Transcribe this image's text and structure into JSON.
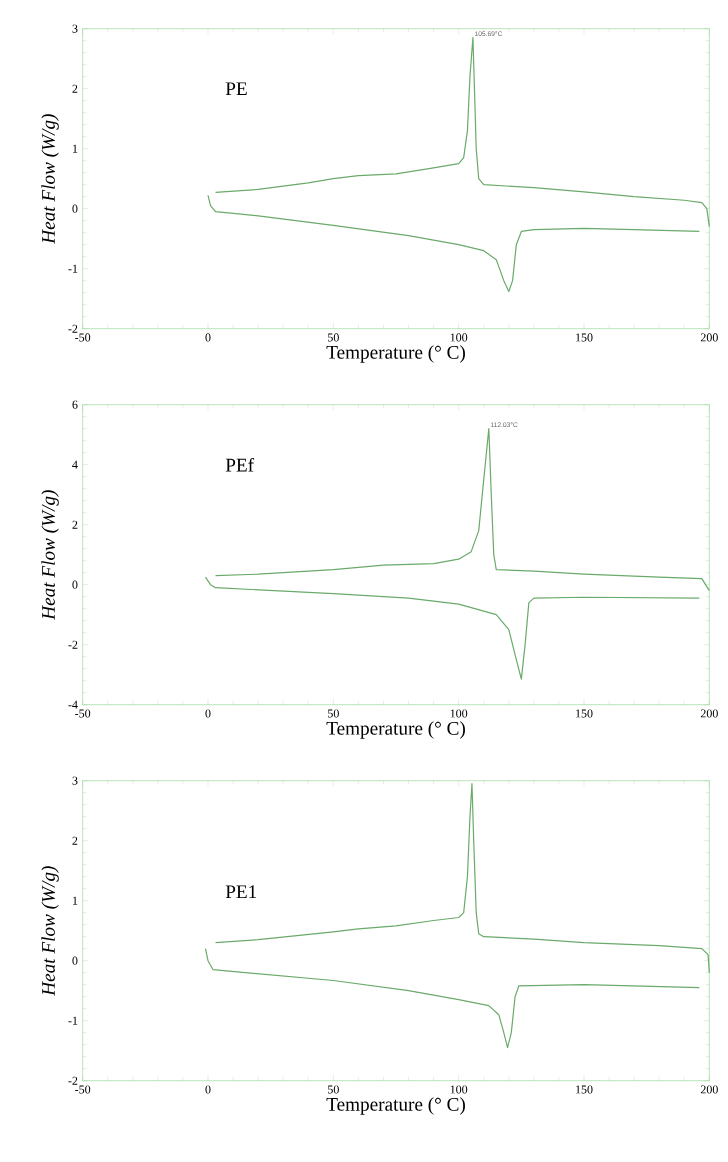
{
  "chart_data": [
    {
      "type": "line",
      "xlabel": "Temperature (° C)",
      "ylabel": "Heat Flow (W/g)",
      "xlim": [
        -50,
        200
      ],
      "ylim": [
        -2,
        3
      ],
      "xticks": [
        -50,
        0,
        50,
        100,
        150,
        200
      ],
      "yticks": [
        -2,
        -1,
        0,
        1,
        2,
        3
      ],
      "annotations": [
        "PE",
        {
          "text": "105.69°C",
          "x": 105.69,
          "y": 2.85
        }
      ],
      "series": [
        {
          "color": "#6aaa6a",
          "x": [
            3,
            20,
            40,
            50,
            60,
            75,
            90,
            100,
            102,
            103.5,
            104.5,
            105.69,
            106.3,
            107,
            108,
            110,
            130,
            150,
            170,
            190,
            197,
            199,
            200
          ],
          "values": [
            0.27,
            0.32,
            0.43,
            0.5,
            0.55,
            0.58,
            0.68,
            0.75,
            0.85,
            1.3,
            2.2,
            2.85,
            2.0,
            1.0,
            0.5,
            0.4,
            0.35,
            0.28,
            0.2,
            0.14,
            0.1,
            0,
            -0.3
          ]
        },
        {
          "color": "#6aaa6a",
          "x": [
            0,
            1,
            3,
            20,
            50,
            80,
            100,
            110,
            115,
            118,
            120,
            121.5,
            123,
            125,
            130,
            150,
            170,
            196
          ],
          "values": [
            0.22,
            0.05,
            -0.05,
            -0.12,
            -0.28,
            -0.45,
            -0.6,
            -0.7,
            -0.85,
            -1.2,
            -1.38,
            -1.2,
            -0.6,
            -0.38,
            -0.35,
            -0.33,
            -0.35,
            -0.38
          ]
        }
      ]
    },
    {
      "type": "line",
      "xlabel": "Temperature (° C)",
      "ylabel": "Heat Flow (W/g)",
      "xlim": [
        -50,
        200
      ],
      "ylim": [
        -4,
        6
      ],
      "xticks": [
        -50,
        0,
        50,
        100,
        150,
        200
      ],
      "yticks": [
        -4,
        -2,
        0,
        2,
        4,
        6
      ],
      "annotations": [
        "PEf",
        {
          "text": "112.03°C",
          "x": 112.03,
          "y": 5.2
        }
      ],
      "series": [
        {
          "color": "#6aaa6a",
          "x": [
            3,
            20,
            50,
            70,
            90,
            100,
            105,
            108,
            110,
            112.03,
            113,
            114,
            115,
            130,
            150,
            180,
            197,
            200
          ],
          "values": [
            0.3,
            0.35,
            0.5,
            0.65,
            0.7,
            0.85,
            1.1,
            1.8,
            3.5,
            5.2,
            3.0,
            1.0,
            0.5,
            0.45,
            0.35,
            0.25,
            0.2,
            -0.2
          ]
        },
        {
          "color": "#6aaa6a",
          "x": [
            -1,
            1,
            3,
            50,
            80,
            100,
            115,
            120,
            123,
            125,
            126.5,
            128,
            130,
            150,
            196
          ],
          "values": [
            0.25,
            0,
            -0.1,
            -0.3,
            -0.45,
            -0.65,
            -1.0,
            -1.5,
            -2.5,
            -3.15,
            -2.0,
            -0.6,
            -0.45,
            -0.42,
            -0.45
          ]
        }
      ]
    },
    {
      "type": "line",
      "xlabel": "Temperature (° C)",
      "ylabel": "Heat Flow (W/g)",
      "xlim": [
        -50,
        200
      ],
      "ylim": [
        -2,
        3
      ],
      "xticks": [
        -50,
        0,
        50,
        100,
        150,
        200
      ],
      "yticks": [
        -2,
        -1,
        0,
        1,
        2,
        3
      ],
      "annotations": [
        "PE1"
      ],
      "series": [
        {
          "color": "#6aaa6a",
          "x": [
            3,
            20,
            50,
            60,
            75,
            90,
            100,
            102,
            103.5,
            104.5,
            105.3,
            106,
            107,
            108,
            110,
            130,
            150,
            180,
            197,
            199.5,
            200
          ],
          "values": [
            0.3,
            0.35,
            0.48,
            0.53,
            0.58,
            0.67,
            0.72,
            0.8,
            1.4,
            2.4,
            2.95,
            2.0,
            0.8,
            0.45,
            0.4,
            0.36,
            0.3,
            0.25,
            0.2,
            0.1,
            -0.2
          ]
        },
        {
          "color": "#6aaa6a",
          "x": [
            -1,
            0,
            2,
            50,
            80,
            100,
            112,
            116,
            118,
            119.5,
            121,
            122.5,
            124,
            150,
            196
          ],
          "values": [
            0.2,
            0,
            -0.15,
            -0.33,
            -0.5,
            -0.65,
            -0.75,
            -0.9,
            -1.2,
            -1.45,
            -1.2,
            -0.6,
            -0.42,
            -0.4,
            -0.45
          ]
        }
      ]
    }
  ]
}
